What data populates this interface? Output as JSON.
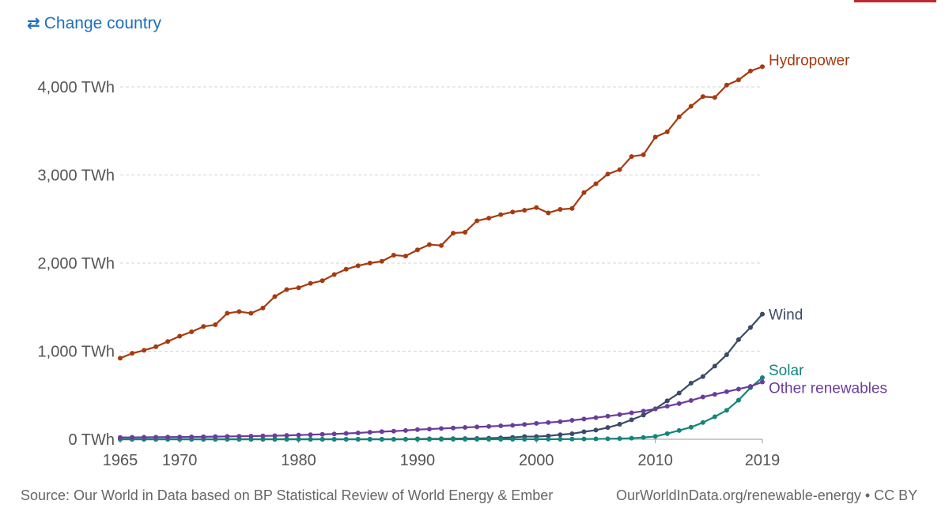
{
  "header": {
    "change_country_label": "Change country",
    "change_country_icon": "swap-arrows-icon"
  },
  "footer": {
    "source": "Source: Our World in Data based on BP Statistical Review of World Energy & Ember",
    "license": "OurWorldInData.org/renewable-energy • CC BY"
  },
  "colors": {
    "hydropower": "#a63a0f",
    "wind": "#3b4a66",
    "solar": "#13857a",
    "other": "#6a3d9a",
    "link": "#1d6fc0"
  },
  "chart_data": {
    "type": "line",
    "title": "",
    "xlabel": "",
    "ylabel": "",
    "unit": "TWh",
    "ylim": [
      0,
      4250
    ],
    "xlim": [
      1965,
      2019
    ],
    "grid": true,
    "legend_placement": "line-end labels",
    "y_ticks": [
      {
        "value": 0,
        "label": "0 TWh"
      },
      {
        "value": 1000,
        "label": "1,000 TWh"
      },
      {
        "value": 2000,
        "label": "2,000 TWh"
      },
      {
        "value": 3000,
        "label": "3,000 TWh"
      },
      {
        "value": 4000,
        "label": "4,000 TWh"
      }
    ],
    "x_ticks": [
      {
        "value": 1965,
        "label": "1965"
      },
      {
        "value": 1970,
        "label": "1970"
      },
      {
        "value": 1980,
        "label": "1980"
      },
      {
        "value": 1990,
        "label": "1990"
      },
      {
        "value": 2000,
        "label": "2000"
      },
      {
        "value": 2010,
        "label": "2010"
      },
      {
        "value": 2019,
        "label": "2019"
      }
    ],
    "x": [
      1965,
      1966,
      1967,
      1968,
      1969,
      1970,
      1971,
      1972,
      1973,
      1974,
      1975,
      1976,
      1977,
      1978,
      1979,
      1980,
      1981,
      1982,
      1983,
      1984,
      1985,
      1986,
      1987,
      1988,
      1989,
      1990,
      1991,
      1992,
      1993,
      1994,
      1995,
      1996,
      1997,
      1998,
      1999,
      2000,
      2001,
      2002,
      2003,
      2004,
      2005,
      2006,
      2007,
      2008,
      2009,
      2010,
      2011,
      2012,
      2013,
      2014,
      2015,
      2016,
      2017,
      2018,
      2019
    ],
    "series": [
      {
        "name": "Hydropower",
        "color_key": "hydropower",
        "values": [
          920,
          975,
          1010,
          1050,
          1110,
          1170,
          1220,
          1280,
          1300,
          1430,
          1450,
          1430,
          1490,
          1620,
          1700,
          1720,
          1770,
          1800,
          1870,
          1930,
          1970,
          2000,
          2020,
          2090,
          2080,
          2150,
          2210,
          2200,
          2340,
          2350,
          2480,
          2510,
          2550,
          2580,
          2600,
          2630,
          2570,
          2610,
          2620,
          2800,
          2900,
          3010,
          3060,
          3210,
          3230,
          3430,
          3490,
          3660,
          3780,
          3890,
          3880,
          4020,
          4080,
          4180,
          4230
        ]
      },
      {
        "name": "Wind",
        "color_key": "wind",
        "values": [
          0,
          0,
          0,
          0,
          0,
          0,
          0,
          0,
          0,
          0,
          0,
          0,
          0,
          0,
          0,
          0,
          0,
          0,
          0,
          0,
          0,
          0,
          0,
          0,
          0,
          4,
          5,
          6,
          7,
          8,
          9,
          12,
          16,
          21,
          31,
          31,
          38,
          52,
          63,
          85,
          104,
          133,
          170,
          221,
          275,
          345,
          436,
          525,
          637,
          712,
          831,
          960,
          1131,
          1269,
          1420
        ]
      },
      {
        "name": "Solar",
        "color_key": "solar",
        "values": [
          0,
          0,
          0,
          0,
          0,
          0,
          0,
          0,
          0,
          0,
          0,
          0,
          0,
          0,
          0,
          0,
          0,
          0,
          0,
          0,
          0,
          0,
          0,
          0,
          0,
          0,
          0,
          0,
          0,
          0,
          0,
          0,
          0,
          0,
          0,
          1,
          1,
          1,
          2,
          3,
          4,
          6,
          8,
          12,
          20,
          32,
          64,
          100,
          137,
          190,
          256,
          329,
          444,
          585,
          700
        ]
      },
      {
        "name": "Other renewables",
        "color_key": "other",
        "values": [
          20,
          22,
          23,
          24,
          25,
          26,
          27,
          28,
          30,
          32,
          34,
          36,
          38,
          40,
          44,
          48,
          52,
          56,
          60,
          66,
          72,
          80,
          86,
          92,
          100,
          110,
          116,
          122,
          128,
          134,
          140,
          146,
          152,
          158,
          168,
          180,
          190,
          200,
          215,
          230,
          245,
          262,
          280,
          300,
          320,
          345,
          375,
          405,
          440,
          480,
          510,
          540,
          570,
          600,
          650
        ]
      }
    ]
  }
}
